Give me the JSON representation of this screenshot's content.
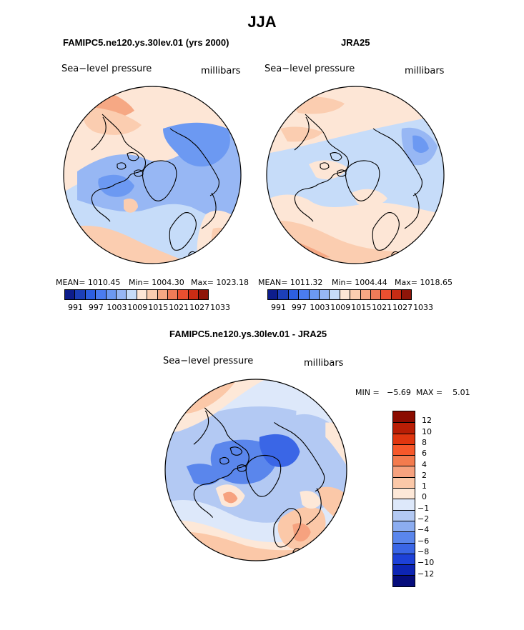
{
  "title": "JJA",
  "panels": [
    {
      "title": "FAMIPC5.ne120.ys.30lev.01 (yrs 2000)",
      "field": "Sea−level pressure",
      "units": "millibars",
      "mean": "MEAN= 1010.45",
      "min": "Min= 1004.30",
      "max": "Max= 1023.18"
    },
    {
      "title": "JRA25",
      "field": "Sea−level pressure",
      "units": "millibars",
      "mean": "MEAN= 1011.32",
      "min": "Min= 1004.44",
      "max": "Max= 1018.65"
    }
  ],
  "diff": {
    "title": "FAMIPC5.ne120.ys.30lev.01 - JRA25",
    "field": "Sea−level pressure",
    "units": "millibars",
    "minmax": "MIN =   −5.69  MAX =    5.01"
  },
  "chart_data": [
    {
      "type": "heatmap",
      "projection": "polar-stereographic-north",
      "variable": "Sea-level pressure",
      "units": "millibars",
      "stats": {
        "mean": 1010.45,
        "min": 1004.3,
        "max": 1023.18
      },
      "colorbar_levels": [
        991,
        997,
        1003,
        1009,
        1015,
        1021,
        1027,
        1033
      ],
      "colorbar_colors": [
        "#0d1d8c",
        "#1c3fb8",
        "#2d5fe0",
        "#4a7cf0",
        "#6c99f2",
        "#97b7f4",
        "#c6dcf9",
        "#fde6d6",
        "#fbcdb0",
        "#f6a884",
        "#f07b58",
        "#ea4f30",
        "#c92c14",
        "#8e1509"
      ]
    },
    {
      "type": "heatmap",
      "projection": "polar-stereographic-north",
      "variable": "Sea-level pressure",
      "units": "millibars",
      "stats": {
        "mean": 1011.32,
        "min": 1004.44,
        "max": 1018.65
      },
      "colorbar_levels": [
        991,
        997,
        1003,
        1009,
        1015,
        1021,
        1027,
        1033
      ],
      "colorbar_colors": [
        "#0d1d8c",
        "#1c3fb8",
        "#2d5fe0",
        "#4a7cf0",
        "#6c99f2",
        "#97b7f4",
        "#c6dcf9",
        "#fde6d6",
        "#fbcdb0",
        "#f6a884",
        "#f07b58",
        "#ea4f30",
        "#c92c14",
        "#8e1509"
      ]
    },
    {
      "type": "heatmap",
      "projection": "polar-stereographic-north",
      "variable": "Sea-level pressure difference",
      "units": "millibars",
      "stats": {
        "min": -5.69,
        "max": 5.01
      },
      "colorbar_levels": [
        "12",
        "10",
        "8",
        "6",
        "4",
        "2",
        "1",
        "0",
        "−1",
        "−2",
        "−4",
        "−6",
        "−8",
        "−10",
        "−12"
      ],
      "colorbar_colors": [
        "#8b0c00",
        "#b91e05",
        "#e0360f",
        "#f6582a",
        "#f37b4e",
        "#f6a27f",
        "#fbc8a8",
        "#fde8d8",
        "#dde8fa",
        "#b3c9f3",
        "#8cadf0",
        "#5a86ec",
        "#3a66e6",
        "#1d41d8",
        "#0d25b4",
        "#060d7c"
      ]
    }
  ]
}
